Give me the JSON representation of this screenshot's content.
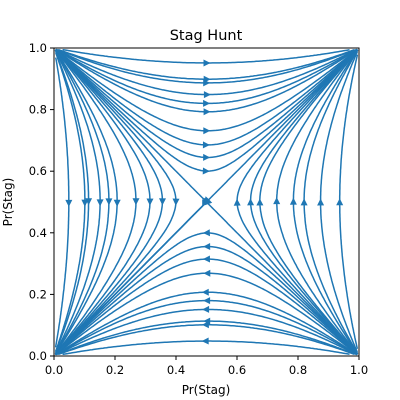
{
  "chart_data": {
    "type": "streamplot",
    "title": "Stag Hunt",
    "xlabel": "Pr(Stag)",
    "ylabel": "Pr(Stag)",
    "xlim": [
      0.0,
      1.0
    ],
    "ylim": [
      0.0,
      1.0
    ],
    "xticks": [
      "0.0",
      "0.2",
      "0.4",
      "0.6",
      "0.8",
      "1.0"
    ],
    "yticks": [
      "0.0",
      "0.2",
      "0.4",
      "0.6",
      "0.8",
      "1.0"
    ],
    "grid": false,
    "color": "#1f77b4",
    "vector_field": {
      "dx": "x * (1 - x) * (y - 0.5)",
      "dy": "y * (1 - y) * (x - 0.5)"
    },
    "saddle_point": [
      0.5,
      0.5
    ],
    "attractors": [
      [
        0.0,
        0.0
      ],
      [
        1.0,
        1.0
      ]
    ]
  }
}
